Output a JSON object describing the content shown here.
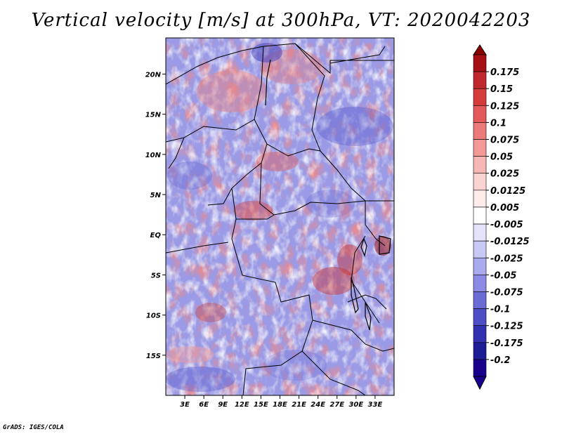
{
  "title": "Vertical velocity [m/s] at 300hPa, VT: 2020042203",
  "credit": "GrADS: IGES/COLA",
  "map": {
    "lon_range": [
      0,
      36
    ],
    "lat_range": [
      -20,
      24.5
    ],
    "lat_ticks": [
      {
        "value": 20,
        "label": "20N"
      },
      {
        "value": 15,
        "label": "15N"
      },
      {
        "value": 10,
        "label": "10N"
      },
      {
        "value": 5,
        "label": "5N"
      },
      {
        "value": 0,
        "label": "EQ"
      },
      {
        "value": -5,
        "label": "5S"
      },
      {
        "value": -10,
        "label": "10S"
      },
      {
        "value": -15,
        "label": "15S"
      }
    ],
    "lon_ticks": [
      {
        "value": 3,
        "label": "3E"
      },
      {
        "value": 6,
        "label": "6E"
      },
      {
        "value": 9,
        "label": "9E"
      },
      {
        "value": 12,
        "label": "12E"
      },
      {
        "value": 15,
        "label": "15E"
      },
      {
        "value": 18,
        "label": "18E"
      },
      {
        "value": 21,
        "label": "21E"
      },
      {
        "value": 24,
        "label": "24E"
      },
      {
        "value": 27,
        "label": "27E"
      },
      {
        "value": 30,
        "label": "30E"
      },
      {
        "value": 33,
        "label": "33E"
      }
    ]
  },
  "colorbar": {
    "levels": [
      {
        "label": "0.175",
        "color": "#a50f15"
      },
      {
        "label": "0.15",
        "color": "#c0282d"
      },
      {
        "label": "0.125",
        "color": "#d63b3b"
      },
      {
        "label": "0.1",
        "color": "#e45a5a"
      },
      {
        "label": "0.075",
        "color": "#ec7a78"
      },
      {
        "label": "0.05",
        "color": "#f29a97"
      },
      {
        "label": "0.025",
        "color": "#f7b8b5"
      },
      {
        "label": "0.0125",
        "color": "#fbd3d0"
      },
      {
        "label": "0.005",
        "color": "#feeceb"
      },
      {
        "label": "-0.005",
        "color": "#ffffff"
      },
      {
        "label": "-0.0125",
        "color": "#e3e3fb"
      },
      {
        "label": "-0.025",
        "color": "#c8c8f5"
      },
      {
        "label": "-0.05",
        "color": "#aaaaee"
      },
      {
        "label": "-0.075",
        "color": "#8b8be3"
      },
      {
        "label": "-0.1",
        "color": "#6b6bd6"
      },
      {
        "label": "-0.125",
        "color": "#4d4dc6"
      },
      {
        "label": "-0.175",
        "color": "#3030b0"
      },
      {
        "label": "-0.2",
        "color": "#1c1c96"
      }
    ],
    "top_color": "#8b0000",
    "bottom_color": "#1a008c"
  }
}
